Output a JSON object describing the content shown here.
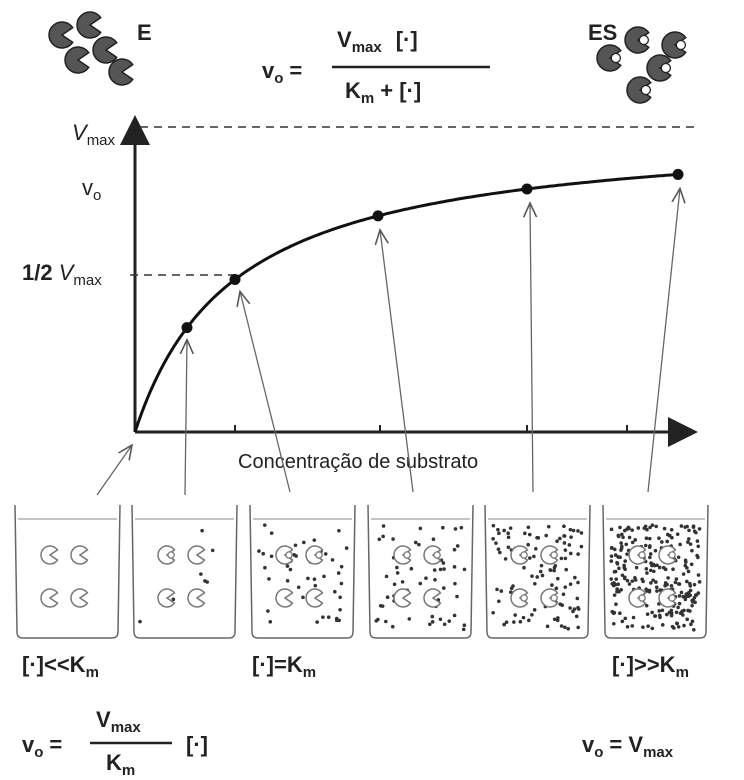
{
  "header": {
    "enzyme_label": "E",
    "complex_label": "ES"
  },
  "equation": {
    "lhs": "v",
    "lhs_sub": "o",
    "equals": "=",
    "num_v": "V",
    "num_sub": "max",
    "num_s": "[·]",
    "den_k": "K",
    "den_sub": "m",
    "den_rest": "+ [·]"
  },
  "axis": {
    "vmax": [
      "V",
      "max"
    ],
    "vo": [
      "v",
      "o"
    ],
    "half_vmax": [
      "1/2 ",
      "V",
      "max"
    ],
    "x_label": "Concentração de substrato"
  },
  "conditions": [
    [
      "[·]<<K",
      "m"
    ],
    [
      "[·]=K",
      "m"
    ],
    [
      "[·]>>K",
      "m"
    ]
  ],
  "low_rate": {
    "lhs": "v",
    "lhs_sub": "o",
    "equals": "=",
    "num_v": "V",
    "num_sub": "max",
    "den_k": "K",
    "den_sub": "m",
    "s": "[·]"
  },
  "high_rate": {
    "lhs": "v",
    "lhs_sub": "o",
    "rhs": "= V",
    "rhs_sub": "max"
  }
}
